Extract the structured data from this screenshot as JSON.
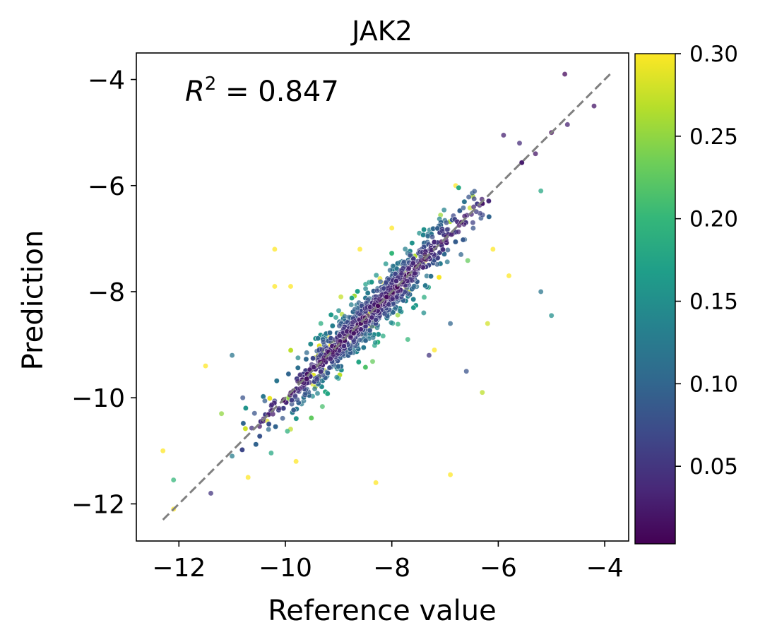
{
  "chart_data": {
    "type": "scatter",
    "title": "JAK2",
    "xlabel": "Reference value",
    "ylabel": "Prediction",
    "xlim": [
      -12.8,
      -3.55
    ],
    "ylim": [
      -12.7,
      -3.5
    ],
    "x_ticks": [
      -12,
      -10,
      -8,
      -6,
      -4
    ],
    "y_ticks": [
      -12,
      -10,
      -8,
      -6,
      -4
    ],
    "x_tick_labels": [
      "−12",
      "−10",
      "−8",
      "−6",
      "−4"
    ],
    "y_tick_labels": [
      "−12",
      "−10",
      "−8",
      "−6",
      "−4"
    ],
    "annotation": {
      "text_prefix": "R",
      "superscript": "2",
      "text_suffix": " = 0.847"
    },
    "r_squared": 0.847,
    "identity_line": {
      "from": [
        -12.3,
        -12.3
      ],
      "to": [
        -3.9,
        -3.9
      ],
      "color": "#808080",
      "style": "dashed"
    },
    "colorbar": {
      "colormap": "viridis",
      "range": [
        0.003,
        0.3
      ],
      "ticks": [
        0.05,
        0.1,
        0.15,
        0.2,
        0.25,
        0.3
      ],
      "tick_labels": [
        "0.05",
        "0.10",
        "0.15",
        "0.20",
        "0.25",
        "0.30"
      ],
      "colors": [
        "#440154",
        "#482878",
        "#3e4989",
        "#31688e",
        "#26828e",
        "#1f9e89",
        "#35b779",
        "#6ece58",
        "#b5de2b",
        "#fde725"
      ]
    },
    "grid": false,
    "points": [
      [
        -4.75,
        -3.9,
        0.01
      ],
      [
        -4.2,
        -4.5,
        0.02
      ],
      [
        -4.7,
        -4.85,
        0.03
      ],
      [
        -5.0,
        -5.0,
        0.01
      ],
      [
        -5.3,
        -5.4,
        0.02
      ],
      [
        -5.6,
        -5.2,
        0.04
      ],
      [
        -5.9,
        -5.05,
        0.03
      ],
      [
        -5.2,
        -6.1,
        0.18
      ],
      [
        -5.2,
        -8.0,
        0.12
      ],
      [
        -5.0,
        -8.45,
        0.15
      ],
      [
        -6.1,
        -7.2,
        0.3
      ],
      [
        -6.9,
        -11.45,
        0.3
      ],
      [
        -6.3,
        -9.9,
        0.27
      ],
      [
        -6.6,
        -9.5,
        0.08
      ],
      [
        -7.2,
        -9.1,
        0.3
      ],
      [
        -6.2,
        -8.6,
        0.28
      ],
      [
        -5.8,
        -7.7,
        0.3
      ],
      [
        -12.3,
        -11.0,
        0.3
      ],
      [
        -12.1,
        -12.1,
        0.3
      ],
      [
        -12.1,
        -11.55,
        0.2
      ],
      [
        -11.2,
        -10.3,
        0.25
      ],
      [
        -11.0,
        -9.2,
        0.12
      ],
      [
        -10.2,
        -7.9,
        0.3
      ],
      [
        -9.9,
        -7.9,
        0.3
      ],
      [
        -8.6,
        -7.2,
        0.3
      ],
      [
        -8.0,
        -6.8,
        0.3
      ],
      [
        -6.8,
        -6.0,
        0.3
      ],
      [
        -10.2,
        -7.2,
        0.3
      ],
      [
        -9.8,
        -11.2,
        0.3
      ],
      [
        -10.7,
        -11.5,
        0.3
      ],
      [
        -8.3,
        -11.6,
        0.3
      ],
      [
        -11.5,
        -9.4,
        0.3
      ],
      [
        -11.0,
        -11.1,
        0.13
      ],
      [
        -10.8,
        -10.0,
        0.08
      ],
      [
        -11.4,
        -11.8,
        0.05
      ],
      [
        -7.3,
        -9.2,
        0.05
      ],
      [
        -6.9,
        -8.6,
        0.1
      ],
      [
        -7.4,
        -8.4,
        0.15
      ],
      [
        -7.7,
        -8.9,
        0.2
      ],
      [
        -6.7,
        -7.3,
        0.1
      ]
    ]
  }
}
